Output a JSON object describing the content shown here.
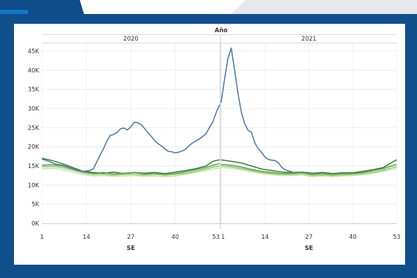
{
  "chart_data": {
    "type": "line",
    "column_header": "Año",
    "panels": [
      {
        "label": "2020",
        "x_ticks": [
          "1",
          "14",
          "27",
          "40",
          "53"
        ],
        "x_range": [
          1,
          53
        ]
      },
      {
        "label": "2021",
        "x_ticks": [
          "1",
          "14",
          "27",
          "40",
          "53"
        ],
        "x_range": [
          1,
          53
        ]
      }
    ],
    "xlabel": "SE",
    "ylabel": "",
    "y_ticks": [
      "0K",
      "5K",
      "10K",
      "15K",
      "20K",
      "25K",
      "30K",
      "35K",
      "40K",
      "45K"
    ],
    "ylim": [
      0,
      47000
    ],
    "grid": true,
    "legend": "none",
    "series": [
      {
        "color": "#4e79a7",
        "points2020": [
          [
            1,
            16800
          ],
          [
            3,
            16200
          ],
          [
            5,
            15500
          ],
          [
            7,
            15200
          ],
          [
            9,
            14600
          ],
          [
            11,
            14000
          ],
          [
            13,
            13600
          ],
          [
            15,
            13800
          ],
          [
            16,
            14200
          ],
          [
            17,
            16000
          ],
          [
            18,
            17800
          ],
          [
            19,
            19500
          ],
          [
            20,
            21500
          ],
          [
            21,
            23000
          ],
          [
            22,
            23200
          ],
          [
            23,
            23800
          ],
          [
            24,
            24700
          ],
          [
            25,
            24900
          ],
          [
            26,
            24400
          ],
          [
            27,
            25200
          ],
          [
            28,
            26400
          ],
          [
            29,
            26300
          ],
          [
            30,
            25800
          ],
          [
            31,
            24800
          ],
          [
            32,
            23700
          ],
          [
            33,
            22700
          ],
          [
            34,
            21600
          ],
          [
            35,
            20800
          ],
          [
            36,
            20200
          ],
          [
            37,
            19400
          ],
          [
            38,
            18800
          ],
          [
            39,
            18700
          ],
          [
            40,
            18400
          ],
          [
            41,
            18600
          ],
          [
            42,
            18900
          ],
          [
            43,
            19400
          ],
          [
            44,
            20200
          ],
          [
            45,
            21000
          ],
          [
            46,
            21500
          ],
          [
            47,
            22000
          ],
          [
            48,
            22700
          ],
          [
            49,
            23400
          ],
          [
            50,
            25000
          ],
          [
            51,
            26500
          ],
          [
            52,
            29000
          ],
          [
            53,
            31000
          ]
        ],
        "points2021": [
          [
            1,
            31500
          ],
          [
            2,
            37500
          ],
          [
            3,
            43000
          ],
          [
            4,
            45800
          ],
          [
            5,
            40000
          ],
          [
            6,
            34000
          ],
          [
            7,
            29000
          ],
          [
            8,
            26000
          ],
          [
            9,
            24300
          ],
          [
            10,
            23800
          ],
          [
            11,
            21000
          ],
          [
            12,
            19500
          ],
          [
            13,
            18500
          ],
          [
            14,
            17300
          ],
          [
            15,
            16700
          ],
          [
            16,
            16500
          ],
          [
            17,
            16400
          ],
          [
            18,
            15800
          ],
          [
            19,
            14600
          ],
          [
            20,
            14000
          ],
          [
            21,
            13700
          ],
          [
            22,
            13500
          ]
        ]
      },
      {
        "color": "#2e7d32",
        "points2020": [
          [
            1,
            17000
          ],
          [
            4,
            16400
          ],
          [
            7,
            15600
          ],
          [
            10,
            14600
          ],
          [
            13,
            13600
          ],
          [
            16,
            13300
          ],
          [
            19,
            13100
          ],
          [
            22,
            13400
          ],
          [
            25,
            13000
          ],
          [
            28,
            13300
          ],
          [
            31,
            13100
          ],
          [
            34,
            13300
          ],
          [
            37,
            13000
          ],
          [
            40,
            13400
          ],
          [
            43,
            13800
          ],
          [
            46,
            14300
          ],
          [
            49,
            15000
          ],
          [
            51,
            16200
          ],
          [
            53,
            16600
          ]
        ],
        "points2021": [
          [
            1,
            16600
          ],
          [
            4,
            16200
          ],
          [
            7,
            15800
          ],
          [
            10,
            15000
          ],
          [
            13,
            14200
          ],
          [
            16,
            13800
          ],
          [
            19,
            13400
          ],
          [
            22,
            13300
          ],
          [
            25,
            13400
          ],
          [
            28,
            13100
          ],
          [
            31,
            13300
          ],
          [
            34,
            13000
          ],
          [
            37,
            13200
          ],
          [
            40,
            13200
          ],
          [
            43,
            13600
          ],
          [
            46,
            14000
          ],
          [
            49,
            14600
          ],
          [
            51,
            15600
          ],
          [
            53,
            16600
          ]
        ]
      },
      {
        "color": "#5a9e44",
        "points2020": [
          [
            1,
            15200
          ],
          [
            4,
            15300
          ],
          [
            7,
            15000
          ],
          [
            10,
            14200
          ],
          [
            13,
            13300
          ],
          [
            16,
            13000
          ],
          [
            19,
            13300
          ],
          [
            22,
            12900
          ],
          [
            25,
            13100
          ],
          [
            28,
            13300
          ],
          [
            31,
            12900
          ],
          [
            34,
            13100
          ],
          [
            37,
            12800
          ],
          [
            40,
            13000
          ],
          [
            43,
            13500
          ],
          [
            46,
            14000
          ],
          [
            49,
            14600
          ],
          [
            51,
            15200
          ],
          [
            53,
            15600
          ]
        ],
        "points2021": [
          [
            1,
            15400
          ],
          [
            4,
            15200
          ],
          [
            7,
            14700
          ],
          [
            10,
            14100
          ],
          [
            13,
            13600
          ],
          [
            16,
            13300
          ],
          [
            19,
            13000
          ],
          [
            22,
            13100
          ],
          [
            25,
            13300
          ],
          [
            28,
            12800
          ],
          [
            31,
            13000
          ],
          [
            34,
            12800
          ],
          [
            37,
            13000
          ],
          [
            40,
            13000
          ],
          [
            43,
            13300
          ],
          [
            46,
            13800
          ],
          [
            49,
            14300
          ],
          [
            51,
            14900
          ],
          [
            53,
            15400
          ]
        ]
      },
      {
        "color": "#8cc569",
        "points2020": [
          [
            1,
            14800
          ],
          [
            4,
            14900
          ],
          [
            7,
            14600
          ],
          [
            10,
            13900
          ],
          [
            13,
            13200
          ],
          [
            16,
            12800
          ],
          [
            19,
            12900
          ],
          [
            22,
            12600
          ],
          [
            25,
            12800
          ],
          [
            28,
            12900
          ],
          [
            31,
            12600
          ],
          [
            34,
            12800
          ],
          [
            37,
            12600
          ],
          [
            40,
            12800
          ],
          [
            43,
            13100
          ],
          [
            46,
            13600
          ],
          [
            49,
            14200
          ],
          [
            51,
            14700
          ],
          [
            53,
            15000
          ]
        ],
        "points2021": [
          [
            1,
            15000
          ],
          [
            4,
            14800
          ],
          [
            7,
            14300
          ],
          [
            10,
            13800
          ],
          [
            13,
            13300
          ],
          [
            16,
            13000
          ],
          [
            19,
            12800
          ],
          [
            22,
            12800
          ],
          [
            25,
            13000
          ],
          [
            28,
            12500
          ],
          [
            31,
            12700
          ],
          [
            34,
            12500
          ],
          [
            37,
            12700
          ],
          [
            40,
            12800
          ],
          [
            43,
            13000
          ],
          [
            46,
            13400
          ],
          [
            49,
            13900
          ],
          [
            51,
            14400
          ],
          [
            53,
            14800
          ]
        ]
      },
      {
        "color": "#bfe3a3",
        "points2020": [
          [
            1,
            14300
          ],
          [
            4,
            14400
          ],
          [
            7,
            14100
          ],
          [
            10,
            13400
          ],
          [
            13,
            12800
          ],
          [
            16,
            12400
          ],
          [
            19,
            12500
          ],
          [
            22,
            12300
          ],
          [
            25,
            12400
          ],
          [
            28,
            12500
          ],
          [
            31,
            12300
          ],
          [
            34,
            12400
          ],
          [
            37,
            12200
          ],
          [
            40,
            12400
          ],
          [
            43,
            12800
          ],
          [
            46,
            13300
          ],
          [
            49,
            13800
          ],
          [
            51,
            14200
          ],
          [
            53,
            14500
          ]
        ],
        "points2021": [
          [
            1,
            14600
          ],
          [
            4,
            14400
          ],
          [
            7,
            14000
          ],
          [
            10,
            13500
          ],
          [
            13,
            13000
          ],
          [
            16,
            12700
          ],
          [
            19,
            12500
          ],
          [
            22,
            12500
          ],
          [
            25,
            12700
          ],
          [
            28,
            12200
          ],
          [
            31,
            12400
          ],
          [
            34,
            12200
          ],
          [
            37,
            12400
          ],
          [
            40,
            12500
          ],
          [
            43,
            12700
          ],
          [
            46,
            13100
          ],
          [
            49,
            13600
          ],
          [
            51,
            14000
          ],
          [
            53,
            14300
          ]
        ]
      }
    ]
  }
}
